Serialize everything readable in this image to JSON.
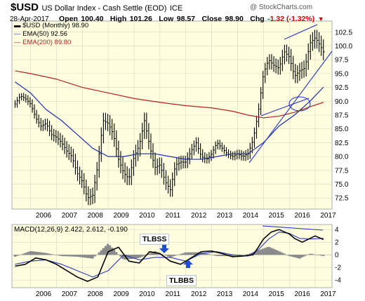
{
  "header": {
    "symbol": "$USD",
    "description": "US Dollar Index - Cash Settle (EOD)",
    "exchange": "ICE",
    "date": "28-Apr-2017",
    "open_label": "Open",
    "open_value": "100.40",
    "high_label": "High",
    "high_value": "101.26",
    "low_label": "Low",
    "low_value": "98.57",
    "close_label": "Close",
    "close_value": "98.90",
    "chg_label": "Chg",
    "chg_value": "-1.32 (-1.32%)",
    "watermark": "@ StockCharts.com"
  },
  "legend": {
    "price_label": "$USD (Monthly) 98.90",
    "ema50_label": "EMA(50) 92.56",
    "ema200_label": "EMA(200) 89.80",
    "macd_label": "MACD(12,26,9) 2.422, 2.612, -0.190"
  },
  "annotations": {
    "tlbss": "TLBSS",
    "tlbbs": "TLBBS"
  },
  "colors": {
    "plot_bg": "#ffffe0",
    "price": "#000000",
    "ema50": "#1f2ea8",
    "ema200": "#b22222",
    "trendline": "#2233cc",
    "histogram": "#8a8a8a",
    "arrow": "#1f4fd0"
  },
  "chart_data": [
    {
      "type": "bar",
      "title": "$USD US Dollar Index - Cash Settle (EOD)",
      "x_ticks": [
        "2006",
        "2007",
        "2008",
        "2009",
        "2010",
        "2011",
        "2012",
        "2013",
        "2014",
        "2015",
        "2016",
        "2017"
      ],
      "y_ticks": [
        72.5,
        75.0,
        77.5,
        80.0,
        82.5,
        85.0,
        87.5,
        90.0,
        92.5,
        95.0,
        97.5,
        100.0,
        102.5
      ],
      "ylim": [
        70.5,
        104.5
      ],
      "grid": true,
      "series": [
        {
          "name": "$USD (Monthly)",
          "x": [
            2005.4,
            2005.6,
            2005.8,
            2006.0,
            2006.2,
            2006.4,
            2006.6,
            2006.8,
            2007.0,
            2007.2,
            2007.4,
            2007.6,
            2007.8,
            2008.0,
            2008.2,
            2008.4,
            2008.6,
            2008.8,
            2009.0,
            2009.2,
            2009.4,
            2009.6,
            2009.8,
            2010.0,
            2010.2,
            2010.4,
            2010.6,
            2010.8,
            2011.0,
            2011.2,
            2011.4,
            2011.6,
            2011.8,
            2012.0,
            2012.2,
            2012.4,
            2012.6,
            2012.8,
            2013.0,
            2013.2,
            2013.4,
            2013.6,
            2013.8,
            2014.0,
            2014.2,
            2014.4,
            2014.6,
            2014.8,
            2015.0,
            2015.2,
            2015.4,
            2015.6,
            2015.8,
            2016.0,
            2016.2,
            2016.4,
            2016.6,
            2016.8,
            2017.0,
            2017.2,
            2017.32
          ],
          "y": [
            89.5,
            91.0,
            90.5,
            89.5,
            87.0,
            85.5,
            86.0,
            84.0,
            83.5,
            82.5,
            81.0,
            80.0,
            77.0,
            75.5,
            72.5,
            73.0,
            78.5,
            86.5,
            86.0,
            84.0,
            79.5,
            77.0,
            76.0,
            80.0,
            82.0,
            86.5,
            82.0,
            78.0,
            78.5,
            75.5,
            74.0,
            78.5,
            79.0,
            79.0,
            81.0,
            82.5,
            80.0,
            79.5,
            80.5,
            82.5,
            81.5,
            80.5,
            80.0,
            80.5,
            80.0,
            80.5,
            83.0,
            88.0,
            95.0,
            97.5,
            96.5,
            96.0,
            99.0,
            98.0,
            94.5,
            95.5,
            96.0,
            100.5,
            101.5,
            100.0,
            98.9
          ]
        },
        {
          "name": "EMA(50)",
          "x": [
            2005.4,
            2006.0,
            2006.6,
            2007.2,
            2007.8,
            2008.4,
            2009.0,
            2009.6,
            2010.2,
            2010.8,
            2011.4,
            2012.0,
            2012.6,
            2013.2,
            2013.8,
            2014.4,
            2015.0,
            2015.6,
            2016.2,
            2016.8,
            2017.32
          ],
          "y": [
            93.5,
            91.5,
            88.5,
            86.5,
            84.0,
            81.5,
            80.0,
            80.0,
            80.5,
            80.5,
            80.0,
            79.5,
            79.5,
            80.0,
            80.5,
            80.5,
            82.5,
            85.5,
            87.5,
            90.0,
            92.56
          ]
        },
        {
          "name": "EMA(200)",
          "x": [
            2005.4,
            2006.0,
            2007.0,
            2008.0,
            2009.0,
            2010.0,
            2011.0,
            2012.0,
            2013.0,
            2013.8,
            2014.4,
            2015.0,
            2015.6,
            2016.2,
            2016.8,
            2017.32
          ],
          "y": [
            95.5,
            95.0,
            94.0,
            92.5,
            91.5,
            90.5,
            89.8,
            89.2,
            88.8,
            88.2,
            87.5,
            87.0,
            87.3,
            88.0,
            89.0,
            89.8
          ]
        }
      ]
    },
    {
      "type": "line",
      "title": "MACD(12,26,9)",
      "x_ticks": [
        "2006",
        "2007",
        "2008",
        "2009",
        "2010",
        "2011",
        "2012",
        "2013",
        "2014",
        "2015",
        "2016",
        "2017"
      ],
      "y_ticks": [
        -4,
        -2,
        0,
        2,
        4
      ],
      "ylim": [
        -5.2,
        4.8
      ],
      "grid": true,
      "series": [
        {
          "name": "MACD",
          "x": [
            2005.4,
            2005.8,
            2006.2,
            2006.6,
            2007.0,
            2007.4,
            2007.8,
            2008.2,
            2008.6,
            2009.0,
            2009.4,
            2009.8,
            2010.2,
            2010.6,
            2011.0,
            2011.4,
            2011.8,
            2012.2,
            2012.6,
            2013.0,
            2013.4,
            2013.8,
            2014.2,
            2014.6,
            2014.8,
            2015.0,
            2015.3,
            2015.6,
            2016.0,
            2016.2,
            2016.5,
            2016.8,
            2017.0,
            2017.32
          ],
          "y": [
            -1.8,
            -1.5,
            -0.5,
            -0.8,
            -1.5,
            -2.5,
            -3.5,
            -4.2,
            -3.5,
            0.5,
            1.2,
            -1.0,
            -1.3,
            0.5,
            0.2,
            -1.0,
            -1.5,
            -0.5,
            0.5,
            0.6,
            0.2,
            -0.3,
            -0.2,
            0.0,
            1.2,
            2.5,
            3.6,
            4.0,
            3.3,
            2.6,
            2.0,
            2.6,
            3.0,
            2.42
          ]
        },
        {
          "name": "Signal",
          "x": [
            2005.4,
            2006.0,
            2006.6,
            2007.2,
            2007.8,
            2008.4,
            2009.0,
            2009.6,
            2010.2,
            2010.8,
            2011.4,
            2012.0,
            2012.6,
            2013.2,
            2013.8,
            2014.4,
            2014.8,
            2015.2,
            2015.6,
            2016.0,
            2016.4,
            2016.8,
            2017.32
          ],
          "y": [
            -1.5,
            -1.0,
            -0.8,
            -1.5,
            -2.5,
            -3.5,
            -2.5,
            0.0,
            -0.8,
            -0.4,
            -0.4,
            -1.0,
            0.2,
            0.5,
            0.0,
            -0.2,
            0.8,
            2.5,
            3.6,
            3.4,
            2.6,
            2.5,
            2.61
          ]
        },
        {
          "name": "Histogram",
          "x": [
            2005.4,
            2006.0,
            2006.6,
            2007.2,
            2007.8,
            2008.4,
            2009.0,
            2009.6,
            2010.2,
            2010.8,
            2011.4,
            2012.0,
            2012.6,
            2013.2,
            2013.8,
            2014.4,
            2014.8,
            2015.2,
            2015.6,
            2016.0,
            2016.4,
            2016.8,
            2017.32
          ],
          "y": [
            -0.3,
            0.6,
            0.3,
            -0.2,
            -0.3,
            -0.6,
            1.8,
            -0.8,
            -0.5,
            0.6,
            -0.4,
            0.4,
            0.4,
            -0.2,
            -0.2,
            0.1,
            0.7,
            1.3,
            0.6,
            -0.2,
            -0.6,
            0.2,
            -0.19
          ]
        }
      ]
    }
  ]
}
